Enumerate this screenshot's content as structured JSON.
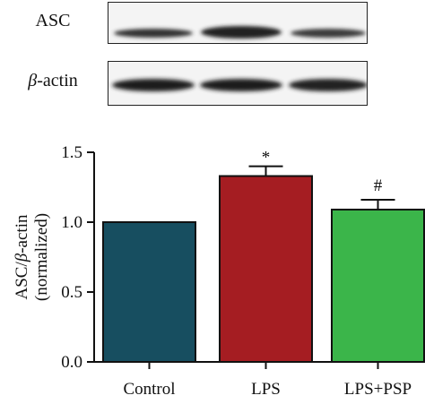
{
  "blots": {
    "top_label": "ASC",
    "bottom_label_symbol": "β",
    "bottom_label_rest": "-actin"
  },
  "chart_data": {
    "type": "bar",
    "categories": [
      "Control",
      "LPS",
      "LPS+PSP"
    ],
    "values": [
      1.0,
      1.33,
      1.09
    ],
    "errors": [
      0.0,
      0.07,
      0.07
    ],
    "significance": [
      "",
      "*",
      "#"
    ],
    "ylabel_line1_pre": "ASC/",
    "ylabel_line1_sym": "β",
    "ylabel_line1_post": "-actin",
    "ylabel_line2": "(normalized)",
    "ylim": [
      0,
      1.5
    ],
    "yticks": [
      "0.0",
      "0.5",
      "1.0",
      "1.5"
    ],
    "colors": [
      "#174e60",
      "#a51d22",
      "#3bb54a"
    ],
    "grid": false
  }
}
